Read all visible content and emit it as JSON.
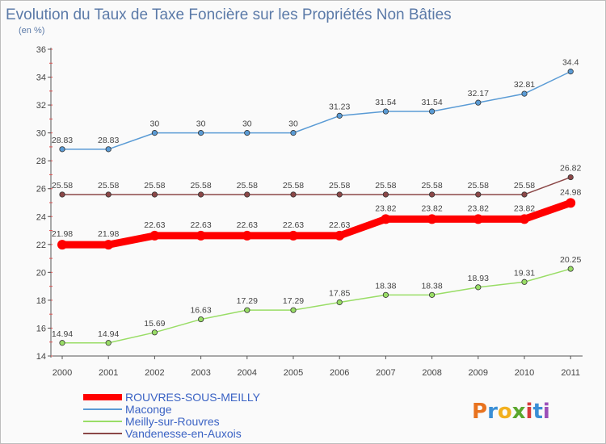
{
  "chart_data": {
    "type": "line",
    "title": "Evolution du Taux de Taxe Foncière sur les Propriétés Non Bâties",
    "subtitle": "(en %)",
    "xlabel": "",
    "ylabel": "",
    "x": [
      "2000",
      "2001",
      "2002",
      "2003",
      "2004",
      "2005",
      "2006",
      "2007",
      "2008",
      "2009",
      "2010",
      "2011"
    ],
    "ylim": [
      14,
      36
    ],
    "yticks": [
      "14",
      "16",
      "18",
      "20",
      "22",
      "24",
      "26",
      "28",
      "30",
      "32",
      "34",
      "36"
    ],
    "grid": false,
    "legend_position": "bottom-left",
    "series": [
      {
        "name": "Maconge",
        "color": "#5a9bd5",
        "values": [
          28.83,
          28.83,
          30,
          30,
          30,
          30,
          31.23,
          31.54,
          31.54,
          32.17,
          32.81,
          34.4
        ],
        "labels": [
          "28.83",
          "28.83",
          "30",
          "30",
          "30",
          "30",
          "31.23",
          "31.54",
          "31.54",
          "32.17",
          "32.81",
          "34.4"
        ]
      },
      {
        "name": "Vandenesse-en-Auxois",
        "color": "#8b4747",
        "values": [
          25.58,
          25.58,
          25.58,
          25.58,
          25.58,
          25.58,
          25.58,
          25.58,
          25.58,
          25.58,
          25.58,
          26.82
        ],
        "labels": [
          "25.58",
          "25.58",
          "25.58",
          "25.58",
          "25.58",
          "25.58",
          "25.58",
          "25.58",
          "25.58",
          "25.58",
          "25.58",
          "26.82"
        ]
      },
      {
        "name": "ROUVRES-SOUS-MEILLY",
        "color": "#ff0000",
        "values": [
          21.98,
          21.98,
          22.63,
          22.63,
          22.63,
          22.63,
          22.63,
          23.82,
          23.82,
          23.82,
          23.82,
          24.98
        ],
        "labels": [
          "21.98",
          "21.98",
          "22.63",
          "22.63",
          "22.63",
          "22.63",
          "22.63",
          "23.82",
          "23.82",
          "23.82",
          "23.82",
          "24.98"
        ]
      },
      {
        "name": "Meilly-sur-Rouvres",
        "color": "#99dd66",
        "values": [
          14.94,
          14.94,
          15.69,
          16.63,
          17.29,
          17.29,
          17.85,
          18.38,
          18.38,
          18.93,
          19.31,
          20.25
        ],
        "labels": [
          "14.94",
          "14.94",
          "15.69",
          "16.63",
          "17.29",
          "17.29",
          "17.85",
          "18.38",
          "18.38",
          "18.93",
          "19.31",
          "20.25"
        ]
      }
    ],
    "legend": [
      "ROUVRES-SOUS-MEILLY",
      "Maconge",
      "Meilly-sur-Rouvres",
      "Vandenesse-en-Auxois"
    ]
  },
  "logo": {
    "text": "Proxiti",
    "letters": [
      "P",
      "r",
      "o",
      "x",
      "i",
      "t",
      "i"
    ],
    "colors": [
      "#e8731f",
      "#3a8fd6",
      "#f2b01e",
      "#5aa72d",
      "#d63a3a",
      "#3a8fd6",
      "#9b4fb8"
    ]
  }
}
